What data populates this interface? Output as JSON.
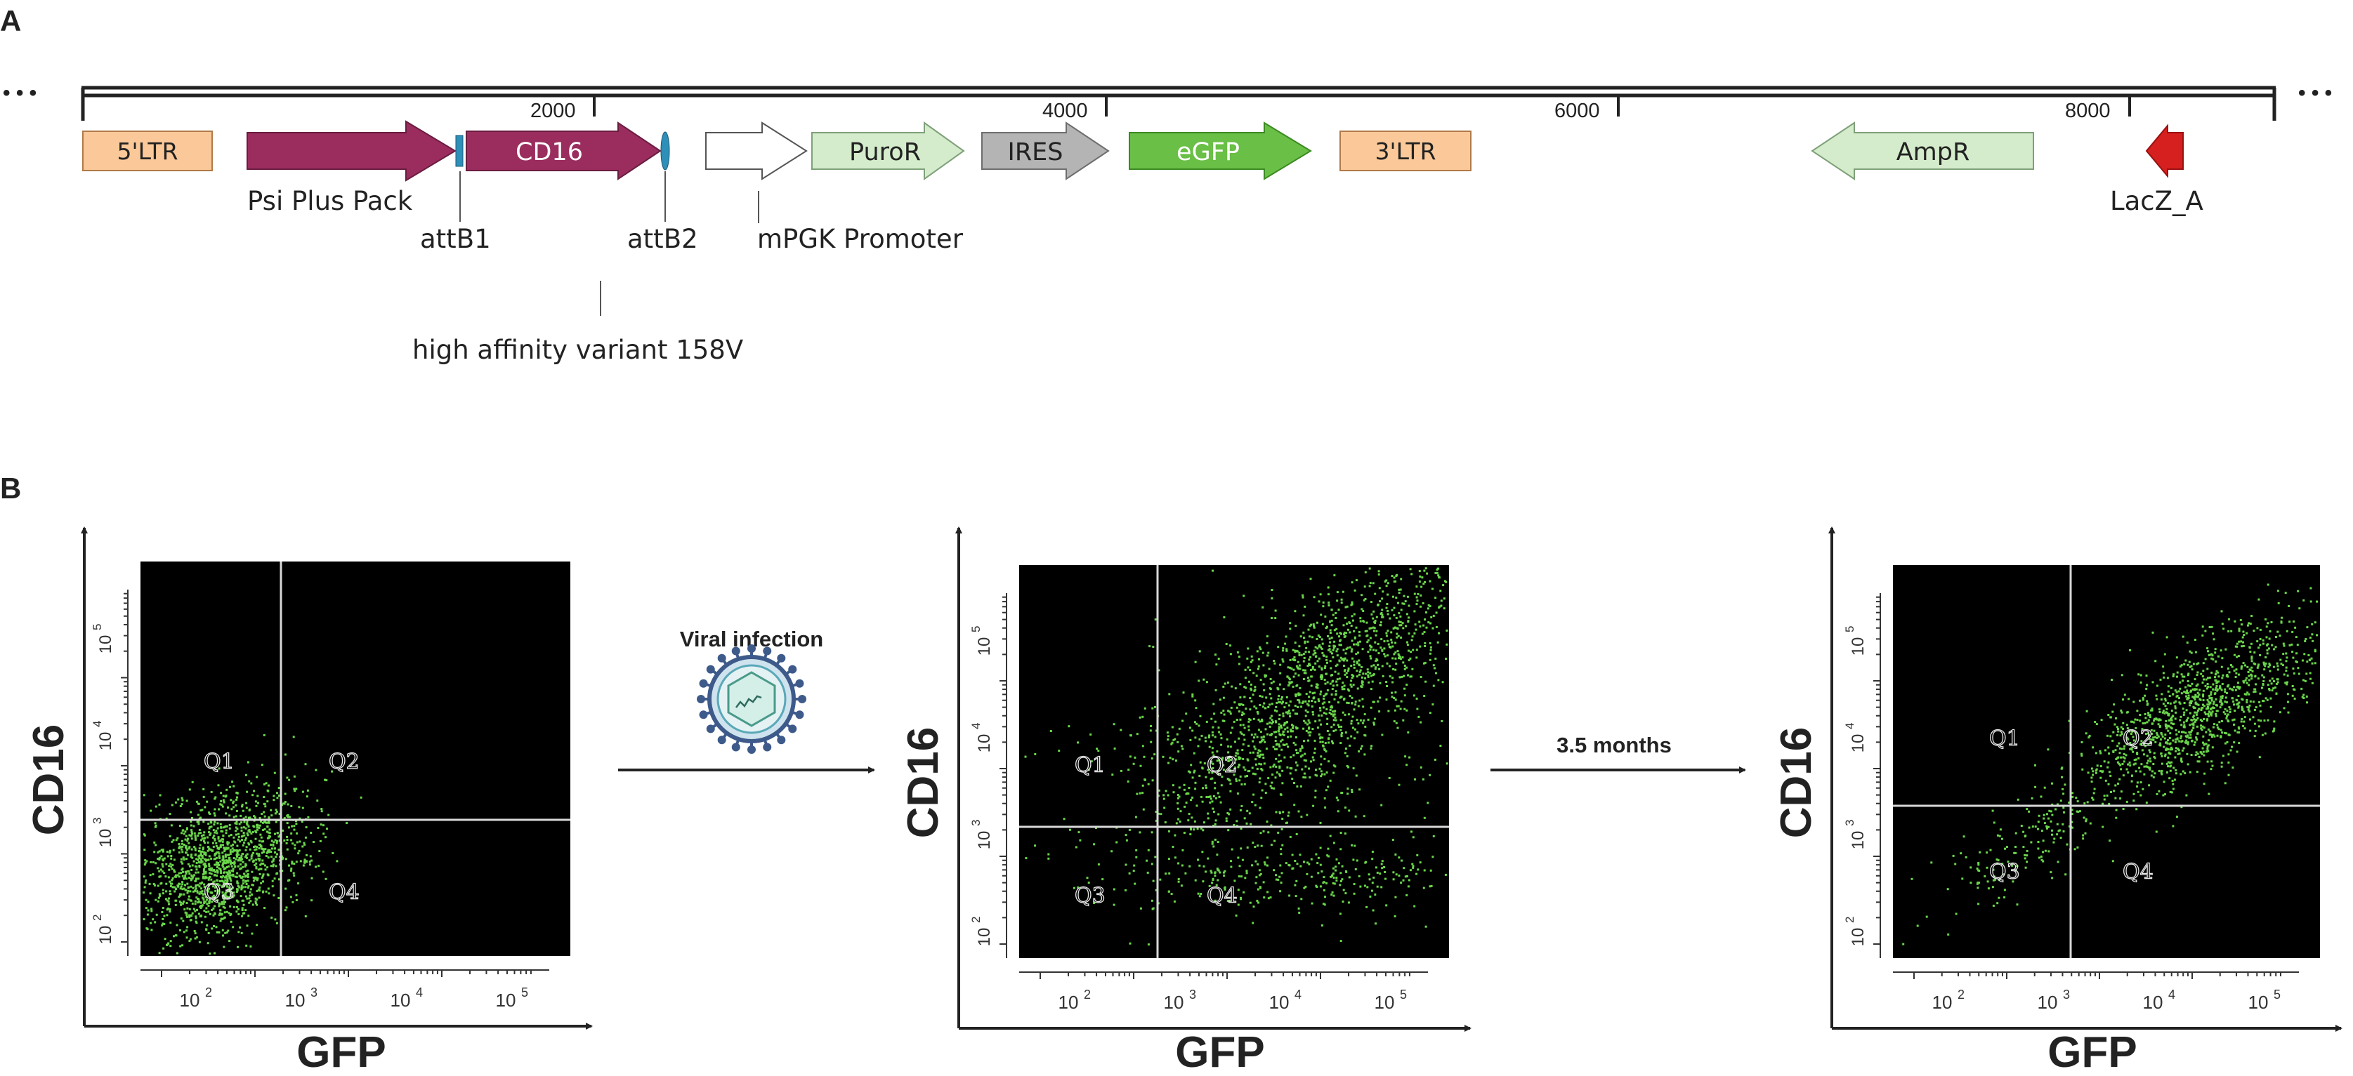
{
  "panel_a": {
    "label": "A",
    "ellipsis_left": "• • •",
    "ellipsis_right": "• • •",
    "ticks": [
      "2000",
      "4000",
      "6000",
      "8000"
    ],
    "features": {
      "ltr5": "5'LTR",
      "cd16": "CD16",
      "puror": "PuroR",
      "ires": "IRES",
      "egfp": "eGFP",
      "ltr3": "3'LTR",
      "ampr": "AmpR"
    },
    "annotations": {
      "psi": "Psi Plus Pack",
      "attb1": "attB1",
      "attb2": "attB2",
      "mpgk": "mPGK Promoter",
      "variant": "high affinity variant 158V",
      "lacz": "LacZ_A"
    },
    "colors": {
      "ltr": "#fbc999",
      "cd16": "#9b2d5e",
      "puror": "#d4eccb",
      "ires": "#b4b4b4",
      "egfp": "#6abf46",
      "ampr": "#d4eccb",
      "lacz": "#d61f1f",
      "att": "#2e8fb8"
    }
  },
  "panel_b": {
    "label": "B",
    "xlabel": "GFP",
    "ylabel": "CD16",
    "quadrants": [
      "Q1",
      "Q2",
      "Q3",
      "Q4"
    ],
    "tick_base": "10",
    "x_exponents": [
      "2",
      "3",
      "4",
      "5"
    ],
    "y_exponents": [
      "2",
      "3",
      "4",
      "5"
    ],
    "step1": "Viral infection",
    "step2": "3.5 months",
    "dot_color": "#6ad64a"
  }
}
